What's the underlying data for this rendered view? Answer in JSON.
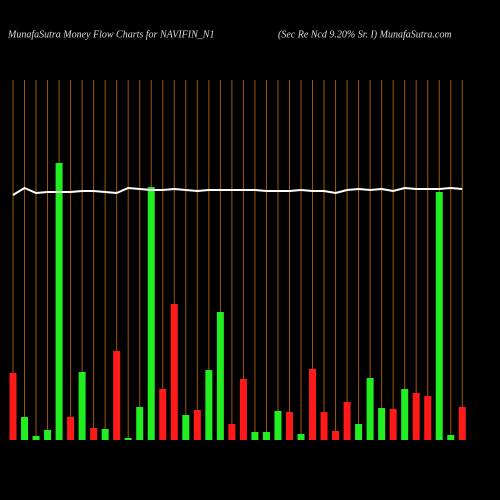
{
  "chart_data": {
    "type": "bar",
    "title": "MunafaSutra  Money Flow  Charts for NAVIFIN_N1",
    "subtitle": "(Sec Re   Ncd 9.20% Sr. I) MunafaSutra.com",
    "values": [
      67,
      23,
      4,
      10,
      277,
      23,
      68,
      12,
      11,
      89,
      2,
      33,
      253,
      51,
      136,
      25,
      30,
      70,
      128,
      16,
      61,
      8,
      8,
      29,
      28,
      6,
      71,
      28,
      9,
      38,
      16,
      62,
      32,
      31,
      51,
      47,
      44,
      248,
      5,
      33
    ],
    "bar_colors": [
      "#ff1a1a",
      "#22ee22",
      "#22ee22",
      "#22ee22",
      "#22ee22",
      "#ff1a1a",
      "#22ee22",
      "#ff1a1a",
      "#22ee22",
      "#ff1a1a",
      "#22ee22",
      "#22ee22",
      "#22ee22",
      "#ff1a1a",
      "#ff1a1a",
      "#22ee22",
      "#ff1a1a",
      "#22ee22",
      "#22ee22",
      "#ff1a1a",
      "#ff1a1a",
      "#22ee22",
      "#22ee22",
      "#22ee22",
      "#ff1a1a",
      "#22ee22",
      "#ff1a1a",
      "#ff1a1a",
      "#ff1a1a",
      "#ff1a1a",
      "#22ee22",
      "#22ee22",
      "#22ee22",
      "#ff1a1a",
      "#22ee22",
      "#ff1a1a",
      "#ff1a1a",
      "#22ee22",
      "#22ee22",
      "#ff1a1a"
    ],
    "line": {
      "color": "#ffffff",
      "values": [
        245,
        252,
        247,
        248,
        248,
        248,
        249,
        249,
        248,
        247,
        252,
        251,
        250,
        250,
        251,
        250,
        249,
        250,
        250,
        250,
        250,
        250,
        249,
        249,
        249,
        250,
        249,
        249,
        247,
        250,
        251,
        250,
        251,
        249,
        252,
        251,
        251,
        251,
        252,
        251
      ]
    },
    "ylim": [
      0,
      300
    ],
    "grid": true,
    "grid_color": "#a0580a"
  }
}
